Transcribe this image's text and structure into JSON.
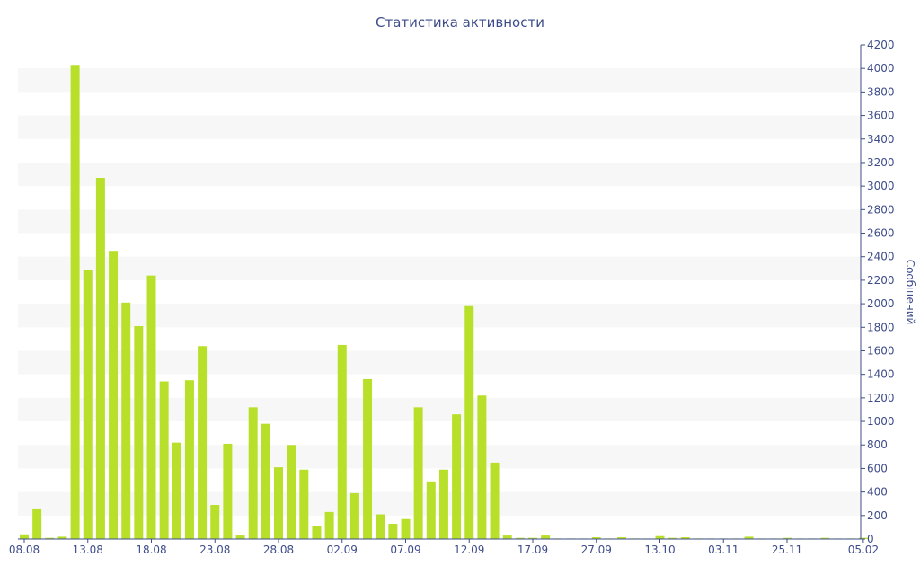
{
  "chart_data": {
    "type": "bar",
    "title": "Статистика активности",
    "ylabel": "Сообщений",
    "xlabel": "",
    "ylim": [
      0,
      4200
    ],
    "y_ticks": [
      0,
      200,
      400,
      600,
      800,
      1000,
      1200,
      1400,
      1600,
      1800,
      2000,
      2200,
      2400,
      2600,
      2800,
      3000,
      3200,
      3400,
      3600,
      3800,
      4000,
      4200
    ],
    "y_axis_side": "right",
    "grid": "alternating horizontal bands",
    "bar_color": "#b8e02a",
    "band_color": "#f7f7f7",
    "text_color": "#3e4d8a",
    "x_tick_labels": [
      "08.08",
      "13.08",
      "18.08",
      "23.08",
      "28.08",
      "02.09",
      "07.09",
      "12.09",
      "17.09",
      "27.09",
      "13.10",
      "03.11",
      "25.11",
      "05.02"
    ],
    "x_tick_indices": [
      0,
      5,
      10,
      15,
      20,
      25,
      30,
      35,
      40,
      45,
      50,
      55,
      60,
      66
    ],
    "values": [
      40,
      260,
      10,
      20,
      4030,
      2290,
      3070,
      2450,
      2010,
      1810,
      2240,
      1340,
      820,
      1350,
      1640,
      290,
      810,
      30,
      1120,
      980,
      610,
      800,
      590,
      110,
      230,
      1650,
      390,
      1360,
      210,
      130,
      170,
      1120,
      490,
      590,
      1060,
      1980,
      1220,
      650,
      30,
      10,
      10,
      30,
      5,
      5,
      5,
      15,
      5,
      15,
      5,
      5,
      25,
      10,
      15,
      5,
      5,
      5,
      5,
      20,
      5,
      5,
      10,
      5,
      5,
      10,
      5,
      5,
      10
    ]
  }
}
